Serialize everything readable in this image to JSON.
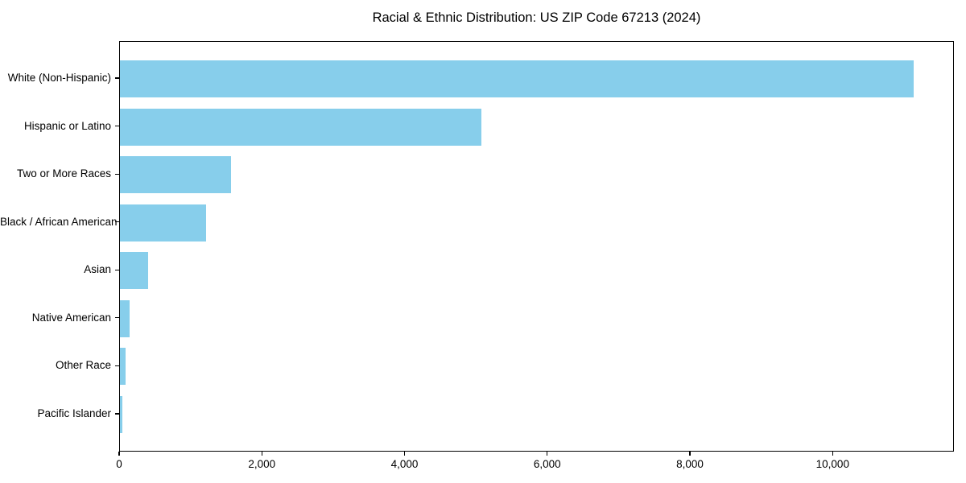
{
  "title": "Racial & Ethnic Distribution: US ZIP Code 67213 (2024)",
  "chart_data": {
    "type": "bar",
    "orientation": "horizontal",
    "title": "Racial & Ethnic Distribution: US ZIP Code 67213 (2024)",
    "categories": [
      "White (Non-Hispanic)",
      "Hispanic or Latino",
      "Two or More Races",
      "Black / African American",
      "Asian",
      "Native American",
      "Other Race",
      "Pacific Islander"
    ],
    "values": [
      11150,
      5080,
      1560,
      1210,
      400,
      140,
      80,
      30
    ],
    "xlabel": "",
    "ylabel": "",
    "xlim": [
      0,
      11700
    ],
    "x_ticks": [
      0,
      2000,
      4000,
      6000,
      8000,
      10000
    ],
    "x_tick_labels": [
      "0",
      "2,000",
      "4,000",
      "6,000",
      "8,000",
      "10,000"
    ],
    "bar_color": "#87CEEB",
    "text_color": "#000000",
    "spine_color": "#000000",
    "grid": false,
    "legend": null
  }
}
